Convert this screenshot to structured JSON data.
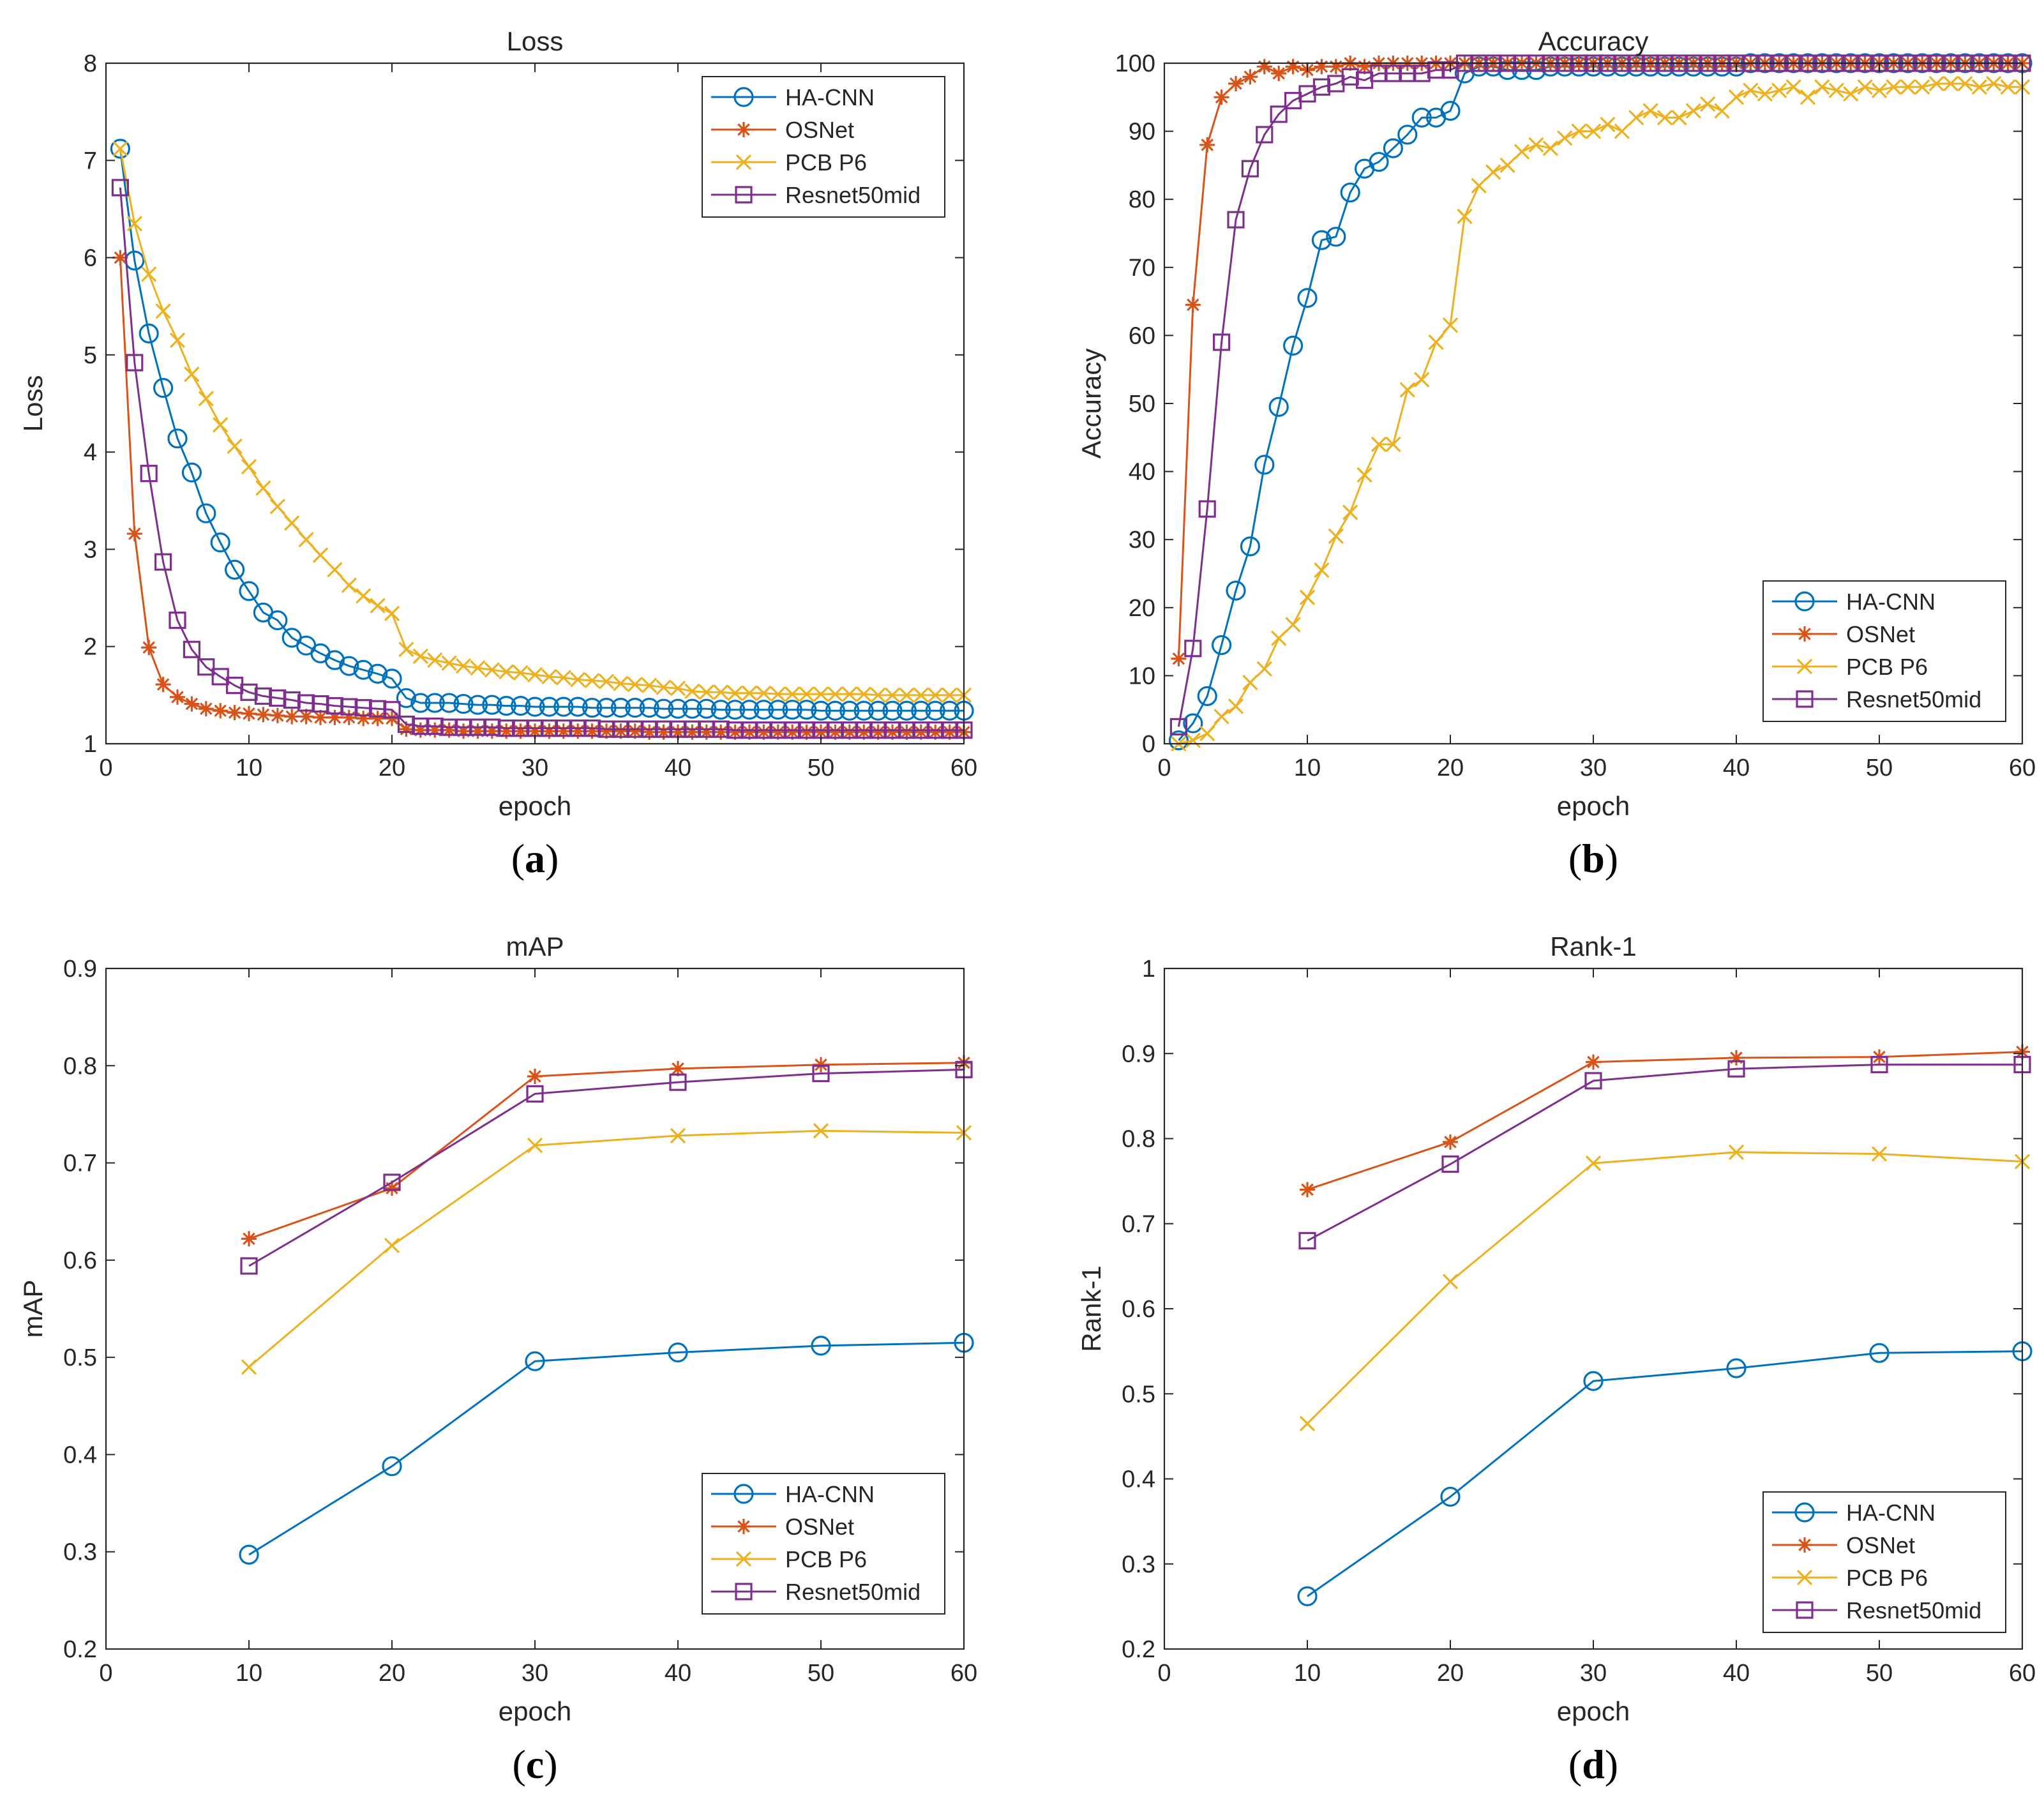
{
  "series_styles": [
    {
      "name": "HA-CNN",
      "color": "#0072BD",
      "marker": "circle"
    },
    {
      "name": "OSNet",
      "color": "#D95319",
      "marker": "star"
    },
    {
      "name": "PCB P6",
      "color": "#EDB120",
      "marker": "x"
    },
    {
      "name": "Resnet50mid",
      "color": "#7E2F8E",
      "marker": "square"
    }
  ],
  "chart_data": [
    {
      "id": "a",
      "type": "line",
      "title": "Loss",
      "xlabel": "epoch",
      "ylabel": "Loss",
      "xlim": [
        0,
        60
      ],
      "ylim": [
        1,
        8
      ],
      "xticks": [
        0,
        10,
        20,
        30,
        40,
        50,
        60
      ],
      "yticks": [
        1,
        2,
        3,
        4,
        5,
        6,
        7,
        8
      ],
      "legend": "top-right",
      "panel_label": "a",
      "x": [
        1,
        2,
        3,
        4,
        5,
        6,
        7,
        8,
        9,
        10,
        11,
        12,
        13,
        14,
        15,
        16,
        17,
        18,
        19,
        20,
        21,
        22,
        23,
        24,
        25,
        26,
        27,
        28,
        29,
        30,
        31,
        32,
        33,
        34,
        35,
        36,
        37,
        38,
        39,
        40,
        41,
        42,
        43,
        44,
        45,
        46,
        47,
        48,
        49,
        50,
        51,
        52,
        53,
        54,
        55,
        56,
        57,
        58,
        59,
        60
      ],
      "series": [
        {
          "name": "HA-CNN",
          "values": [
            7.12,
            5.97,
            5.22,
            4.66,
            4.14,
            3.79,
            3.37,
            3.07,
            2.79,
            2.57,
            2.35,
            2.27,
            2.09,
            2.01,
            1.93,
            1.86,
            1.8,
            1.76,
            1.72,
            1.67,
            1.47,
            1.42,
            1.42,
            1.42,
            1.41,
            1.4,
            1.4,
            1.39,
            1.39,
            1.38,
            1.38,
            1.38,
            1.38,
            1.37,
            1.37,
            1.37,
            1.37,
            1.37,
            1.36,
            1.36,
            1.36,
            1.36,
            1.35,
            1.35,
            1.35,
            1.35,
            1.35,
            1.35,
            1.35,
            1.34,
            1.34,
            1.34,
            1.34,
            1.34,
            1.34,
            1.34,
            1.34,
            1.34,
            1.34,
            1.34
          ]
        },
        {
          "name": "OSNet",
          "values": [
            6.0,
            3.16,
            1.99,
            1.61,
            1.48,
            1.41,
            1.36,
            1.34,
            1.32,
            1.31,
            1.3,
            1.29,
            1.28,
            1.28,
            1.27,
            1.27,
            1.27,
            1.26,
            1.26,
            1.26,
            1.15,
            1.14,
            1.14,
            1.14,
            1.13,
            1.13,
            1.13,
            1.13,
            1.13,
            1.13,
            1.13,
            1.13,
            1.13,
            1.13,
            1.13,
            1.13,
            1.13,
            1.12,
            1.12,
            1.12,
            1.12,
            1.12,
            1.12,
            1.12,
            1.12,
            1.12,
            1.12,
            1.12,
            1.12,
            1.12,
            1.12,
            1.12,
            1.12,
            1.12,
            1.12,
            1.12,
            1.12,
            1.12,
            1.12,
            1.12
          ]
        },
        {
          "name": "PCB P6",
          "values": [
            7.12,
            6.35,
            5.83,
            5.45,
            5.15,
            4.8,
            4.55,
            4.28,
            4.06,
            3.85,
            3.63,
            3.44,
            3.27,
            3.1,
            2.94,
            2.79,
            2.63,
            2.52,
            2.42,
            2.34,
            1.97,
            1.9,
            1.86,
            1.83,
            1.8,
            1.78,
            1.76,
            1.74,
            1.73,
            1.71,
            1.69,
            1.68,
            1.66,
            1.65,
            1.64,
            1.62,
            1.61,
            1.6,
            1.58,
            1.57,
            1.54,
            1.53,
            1.53,
            1.52,
            1.52,
            1.52,
            1.51,
            1.51,
            1.51,
            1.51,
            1.51,
            1.51,
            1.51,
            1.5,
            1.5,
            1.5,
            1.5,
            1.5,
            1.5,
            1.5
          ]
        },
        {
          "name": "Resnet50mid",
          "values": [
            6.72,
            4.92,
            3.78,
            2.87,
            2.27,
            1.97,
            1.79,
            1.69,
            1.6,
            1.53,
            1.49,
            1.47,
            1.45,
            1.42,
            1.41,
            1.39,
            1.38,
            1.37,
            1.36,
            1.35,
            1.2,
            1.18,
            1.18,
            1.17,
            1.17,
            1.17,
            1.17,
            1.16,
            1.16,
            1.16,
            1.16,
            1.16,
            1.16,
            1.16,
            1.15,
            1.15,
            1.15,
            1.15,
            1.15,
            1.15,
            1.15,
            1.15,
            1.15,
            1.14,
            1.14,
            1.14,
            1.14,
            1.14,
            1.14,
            1.14,
            1.14,
            1.14,
            1.14,
            1.14,
            1.14,
            1.14,
            1.14,
            1.14,
            1.14,
            1.14
          ]
        }
      ]
    },
    {
      "id": "b",
      "type": "line",
      "title": "Accuracy",
      "xlabel": "epoch",
      "ylabel": "Accuracy",
      "xlim": [
        0,
        60
      ],
      "ylim": [
        0,
        100
      ],
      "xticks": [
        0,
        10,
        20,
        30,
        40,
        50,
        60
      ],
      "yticks": [
        0,
        10,
        20,
        30,
        40,
        50,
        60,
        70,
        80,
        90,
        100
      ],
      "legend": "bottom-right",
      "panel_label": "b",
      "x": [
        1,
        2,
        3,
        4,
        5,
        6,
        7,
        8,
        9,
        10,
        11,
        12,
        13,
        14,
        15,
        16,
        17,
        18,
        19,
        20,
        21,
        22,
        23,
        24,
        25,
        26,
        27,
        28,
        29,
        30,
        31,
        32,
        33,
        34,
        35,
        36,
        37,
        38,
        39,
        40,
        41,
        42,
        43,
        44,
        45,
        46,
        47,
        48,
        49,
        50,
        51,
        52,
        53,
        54,
        55,
        56,
        57,
        58,
        59,
        60
      ],
      "series": [
        {
          "name": "HA-CNN",
          "values": [
            0.5,
            3,
            7,
            14.5,
            22.5,
            29,
            41,
            49.5,
            58.5,
            65.5,
            74,
            74.5,
            81,
            84.5,
            85.5,
            87.5,
            89.5,
            92,
            92,
            93,
            98.5,
            99.5,
            99.5,
            99,
            99,
            99,
            99.5,
            99.5,
            99.5,
            99.5,
            99.5,
            99.5,
            99.5,
            99.5,
            99.5,
            99.5,
            99.5,
            99.5,
            99.5,
            99.5,
            100,
            100,
            100,
            100,
            100,
            100,
            100,
            100,
            100,
            100,
            100,
            100,
            100,
            100,
            100,
            100,
            100,
            100,
            100,
            100
          ]
        },
        {
          "name": "OSNet",
          "values": [
            12.5,
            64.5,
            88,
            95,
            97,
            98,
            99.5,
            98.5,
            99.5,
            99,
            99.5,
            99.5,
            100,
            99.5,
            100,
            100,
            100,
            100,
            100,
            100,
            100,
            100,
            100,
            100,
            100,
            100,
            100,
            100,
            100,
            100,
            100,
            100,
            100,
            100,
            100,
            100,
            100,
            100,
            100,
            100,
            100,
            100,
            100,
            100,
            100,
            100,
            100,
            100,
            100,
            100,
            100,
            100,
            100,
            100,
            100,
            100,
            100,
            100,
            100,
            100
          ]
        },
        {
          "name": "PCB P6",
          "values": [
            0,
            0.5,
            1.5,
            4,
            5.5,
            9,
            11,
            15.5,
            17.5,
            21.5,
            25.5,
            30.5,
            34,
            39.5,
            44,
            44,
            52,
            53.5,
            59,
            61.5,
            77.5,
            82,
            84,
            85,
            87,
            88,
            87.5,
            89,
            90,
            90,
            91,
            90,
            92,
            93,
            92,
            92,
            93,
            94,
            93,
            95,
            96,
            95.5,
            96,
            96.5,
            95,
            96.5,
            96,
            95.5,
            96.5,
            96,
            96.5,
            96.5,
            96.5,
            97,
            97,
            97,
            96.5,
            97,
            96.5,
            96.5
          ]
        },
        {
          "name": "Resnet50mid",
          "values": [
            2.5,
            14,
            34.5,
            59,
            77,
            84.5,
            89.5,
            92.5,
            94.5,
            95.5,
            96.5,
            97,
            98,
            97.5,
            98.5,
            98.5,
            98.5,
            98.5,
            99,
            99,
            100,
            100,
            100,
            100,
            100,
            100,
            100,
            100,
            100,
            100,
            100,
            100,
            100,
            100,
            100,
            100,
            100,
            100,
            100,
            100,
            100,
            100,
            100,
            100,
            100,
            100,
            100,
            100,
            100,
            100,
            100,
            100,
            100,
            100,
            100,
            100,
            100,
            100,
            100,
            100
          ]
        }
      ]
    },
    {
      "id": "c",
      "type": "line",
      "title": "mAP",
      "xlabel": "epoch",
      "ylabel": "mAP",
      "xlim": [
        0,
        60
      ],
      "ylim": [
        0.2,
        0.9
      ],
      "xticks": [
        0,
        10,
        20,
        30,
        40,
        50,
        60
      ],
      "yticks": [
        0.2,
        0.3,
        0.4,
        0.5,
        0.6,
        0.7,
        0.8,
        0.9
      ],
      "legend": "bottom-right",
      "panel_label": "c",
      "x": [
        10,
        20,
        30,
        40,
        50,
        60
      ],
      "series": [
        {
          "name": "HA-CNN",
          "values": [
            0.297,
            0.388,
            0.496,
            0.505,
            0.512,
            0.515
          ]
        },
        {
          "name": "OSNet",
          "values": [
            0.622,
            0.674,
            0.789,
            0.797,
            0.801,
            0.803
          ]
        },
        {
          "name": "PCB P6",
          "values": [
            0.49,
            0.615,
            0.718,
            0.728,
            0.733,
            0.731
          ]
        },
        {
          "name": "Resnet50mid",
          "values": [
            0.594,
            0.68,
            0.771,
            0.783,
            0.792,
            0.796
          ]
        }
      ]
    },
    {
      "id": "d",
      "type": "line",
      "title": "Rank-1",
      "xlabel": "epoch",
      "ylabel": "Rank-1",
      "xlim": [
        0,
        60
      ],
      "ylim": [
        0.2,
        1
      ],
      "xticks": [
        0,
        10,
        20,
        30,
        40,
        50,
        60
      ],
      "yticks": [
        0.2,
        0.3,
        0.4,
        0.5,
        0.6,
        0.7,
        0.8,
        0.9,
        1
      ],
      "legend": "bottom-right",
      "panel_label": "d",
      "x": [
        10,
        20,
        30,
        40,
        50,
        60
      ],
      "series": [
        {
          "name": "HA-CNN",
          "values": [
            0.262,
            0.379,
            0.515,
            0.53,
            0.548,
            0.55
          ]
        },
        {
          "name": "OSNet",
          "values": [
            0.74,
            0.796,
            0.89,
            0.895,
            0.896,
            0.902
          ]
        },
        {
          "name": "PCB P6",
          "values": [
            0.465,
            0.632,
            0.771,
            0.784,
            0.782,
            0.773
          ]
        },
        {
          "name": "Resnet50mid",
          "values": [
            0.68,
            0.77,
            0.868,
            0.882,
            0.887,
            0.887
          ]
        }
      ]
    }
  ]
}
